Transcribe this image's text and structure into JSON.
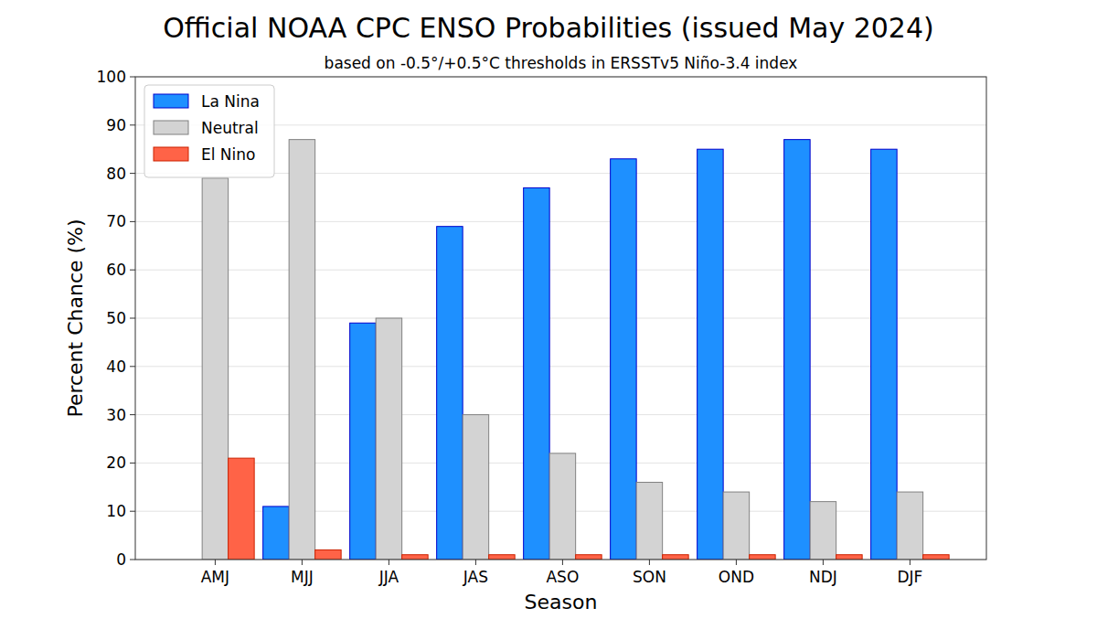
{
  "chart_data": {
    "type": "bar",
    "title": "Official NOAA CPC ENSO Probabilities (issued May 2024)",
    "subtitle": "based on -0.5°/+0.5°C thresholds in ERSSTv5 Niño-3.4 index",
    "x_label": "Season",
    "y_label": "Percent Chance (%)",
    "categories": [
      "AMJ",
      "MJJ",
      "JJA",
      "JAS",
      "ASO",
      "SON",
      "OND",
      "NDJ",
      "DJF"
    ],
    "series": [
      {
        "name": "La Nina",
        "color": "#1e90ff",
        "values": [
          0,
          11,
          49,
          69,
          77,
          83,
          85,
          87,
          85
        ]
      },
      {
        "name": "Neutral",
        "color": "#d3d3d3",
        "values": [
          79,
          87,
          50,
          30,
          22,
          16,
          14,
          12,
          14
        ]
      },
      {
        "name": "El Nino",
        "color": "#ff6347",
        "values": [
          21,
          2,
          1,
          1,
          1,
          1,
          1,
          1,
          1
        ]
      }
    ],
    "ylim": [
      0,
      100
    ],
    "yticks": [
      0,
      10,
      20,
      30,
      40,
      50,
      60,
      70,
      80,
      90,
      100
    ],
    "grid": true,
    "legend": "upper left"
  }
}
